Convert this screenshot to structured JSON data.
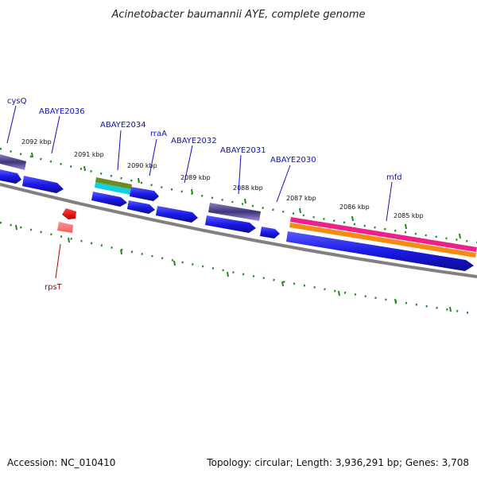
{
  "title": "Acinetobacter baumannii AYE, complete genome",
  "footer": {
    "accession": "Accession: NC_010410",
    "summary": "Topology: circular; Length: 3,936,291 bp; Genes: 3,708"
  },
  "ticks": [
    "2092 kbp",
    "2091 kbp",
    "2090 kbp",
    "2089 kbp",
    "2088 kbp",
    "2087 kbp",
    "2086 kbp",
    "2085 kbp"
  ],
  "genes": [
    "cysQ",
    "ABAYE2036",
    "ABAYE2034",
    "rraA",
    "ABAYE2032",
    "ABAYE2031",
    "ABAYE2030",
    "mfd",
    "rpsT"
  ],
  "colors": {
    "cds": "#1a1ae6",
    "backbone": "#808080",
    "tick": "#1e8a1e",
    "label": "#1010c0",
    "rna_label": "#c00000",
    "rrna": "#e60000"
  }
}
